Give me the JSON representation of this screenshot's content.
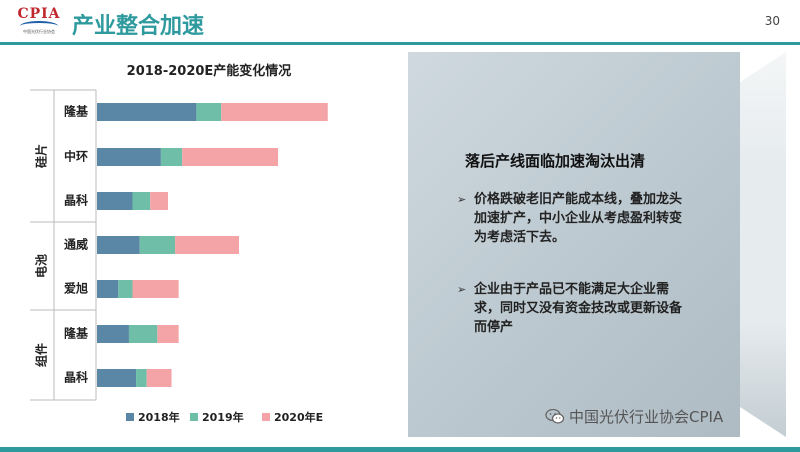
{
  "header": {
    "logo_text": "CPIA",
    "logo_subtext": "中国光伏行业协会",
    "title": "产业整合加速",
    "page_number": "30"
  },
  "colors": {
    "accent": "#2f9a9e",
    "series": [
      "#5b87a6",
      "#6fbfa8",
      "#f4a3a6"
    ]
  },
  "chart_data": {
    "type": "bar",
    "orientation": "horizontal",
    "stacked": true,
    "title": "2018-2020E产能变化情况",
    "groups": [
      {
        "label": "硅片",
        "companies": [
          "隆基",
          "中环",
          "晶科"
        ]
      },
      {
        "label": "电池",
        "companies": [
          "通威",
          "爱旭"
        ]
      },
      {
        "label": "组件",
        "companies": [
          "隆基",
          "晶科"
        ]
      }
    ],
    "categories": [
      "隆基",
      "中环",
      "晶科",
      "通威",
      "爱旭",
      "隆基",
      "晶科"
    ],
    "series": [
      {
        "name": "2018年",
        "values": [
          28,
          18,
          10,
          12,
          6,
          9,
          11
        ]
      },
      {
        "name": "2019年",
        "values": [
          7,
          6,
          5,
          10,
          4,
          8,
          3
        ]
      },
      {
        "name": "2020年E",
        "values": [
          30,
          27,
          5,
          18,
          13,
          6,
          7
        ]
      }
    ],
    "grid": false,
    "legend": "bottom"
  },
  "panel": {
    "heading": "落后产线面临加速淘汰出清",
    "bullets": [
      "价格跌破老旧产能成本线，叠加龙头加速扩产，中小企业从考虑盈利转变为考虑活下去。",
      "企业由于产品已不能满足大企业需求，同时又没有资金技改或更新设备而停产"
    ],
    "bullet_marker": "➢"
  },
  "watermark": {
    "text": "中国光伏行业协会CPIA",
    "icon": "wechat-icon"
  }
}
